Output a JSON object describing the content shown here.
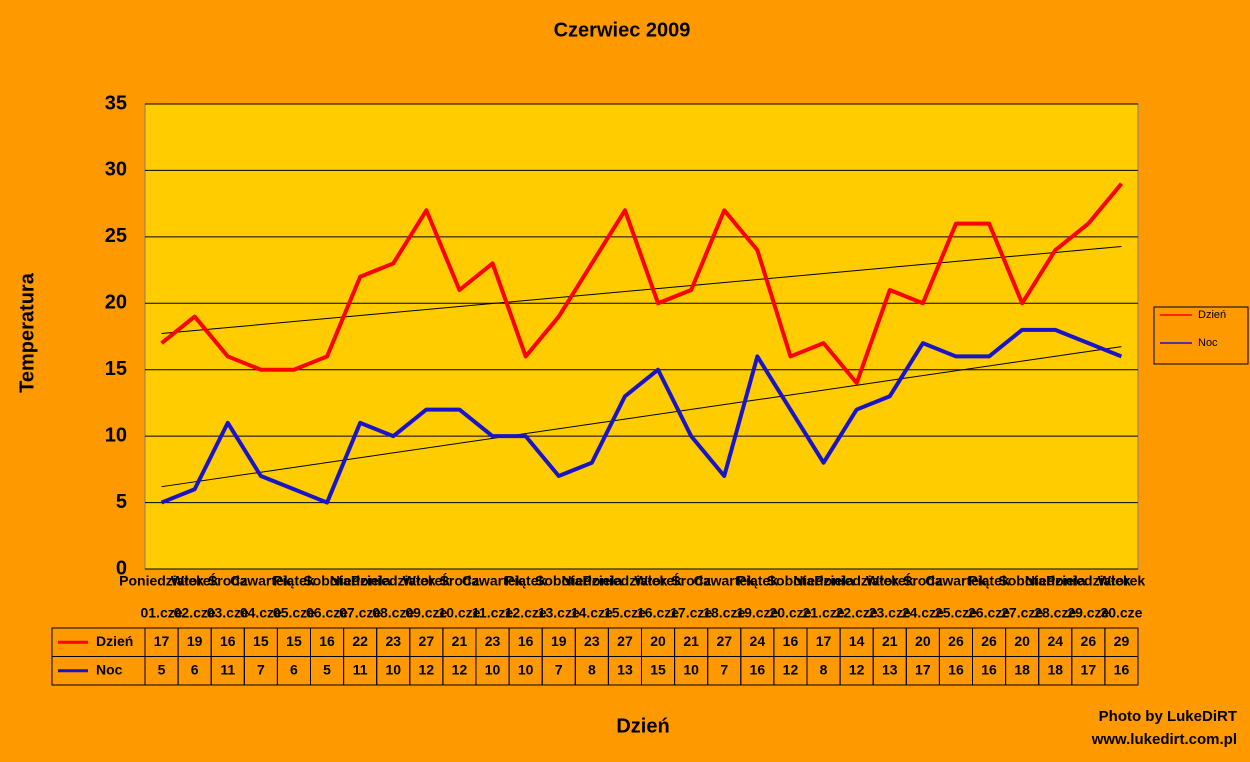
{
  "chart_data": {
    "type": "line",
    "title": "Czerwiec 2009",
    "x_label": "Dzień",
    "y_label": "Temperatura",
    "categories": [
      [
        "Poniedziałek",
        "01.cze"
      ],
      [
        "Wtorek",
        "02.cze"
      ],
      [
        "Środa",
        "03.cze"
      ],
      [
        "Czwartek",
        "04.cze"
      ],
      [
        "Piątek",
        "05.cze"
      ],
      [
        "Sobota",
        "06.cze"
      ],
      [
        "Niedziela",
        "07.cze"
      ],
      [
        "Poniedziałek",
        "08.cze"
      ],
      [
        "Wtorek",
        "09.cze"
      ],
      [
        "Środa",
        "10.cze"
      ],
      [
        "Czwartek",
        "11.cze"
      ],
      [
        "Piątek",
        "12.cze"
      ],
      [
        "Sobota",
        "13.cze"
      ],
      [
        "Niedziela",
        "14.cze"
      ],
      [
        "Poniedziałek",
        "15.cze"
      ],
      [
        "Wtorek",
        "16.cze"
      ],
      [
        "Środa",
        "17.cze"
      ],
      [
        "Czwartek",
        "18.cze"
      ],
      [
        "Piątek",
        "19.cze"
      ],
      [
        "Sobota",
        "20.cze"
      ],
      [
        "Niedziela",
        "21.cze"
      ],
      [
        "Poniedziałek",
        "22.cze"
      ],
      [
        "Wtorek",
        "23.cze"
      ],
      [
        "Środa",
        "24.cze"
      ],
      [
        "Czwartek",
        "25.cze"
      ],
      [
        "Piątek",
        "26.cze"
      ],
      [
        "Sobota",
        "27.cze"
      ],
      [
        "Niedziela",
        "28.cze"
      ],
      [
        "Poniedziałek",
        "29.cze"
      ],
      [
        "Wtorek",
        "30.cze"
      ]
    ],
    "series": [
      {
        "name": "Dzień",
        "color": "#ff0000",
        "values": [
          17,
          19,
          16,
          15,
          15,
          16,
          22,
          23,
          27,
          21,
          23,
          16,
          19,
          23,
          27,
          20,
          21,
          27,
          24,
          16,
          17,
          14,
          21,
          20,
          26,
          26,
          20,
          24,
          26,
          29
        ]
      },
      {
        "name": "Noc",
        "color": "#1a14c8",
        "values": [
          5,
          6,
          11,
          7,
          6,
          5,
          11,
          10,
          12,
          12,
          10,
          10,
          7,
          8,
          13,
          15,
          10,
          7,
          16,
          12,
          8,
          12,
          13,
          17,
          16,
          16,
          18,
          18,
          17,
          16
        ]
      }
    ],
    "ylim": [
      0,
      35
    ],
    "yticks": [
      0,
      5,
      10,
      15,
      20,
      25,
      30,
      35
    ],
    "grid": true,
    "trendline": true,
    "legend": "right",
    "data_table": true,
    "credit": [
      "Photo by LukeDiRT",
      "www.lukedirt.com.pl"
    ]
  }
}
